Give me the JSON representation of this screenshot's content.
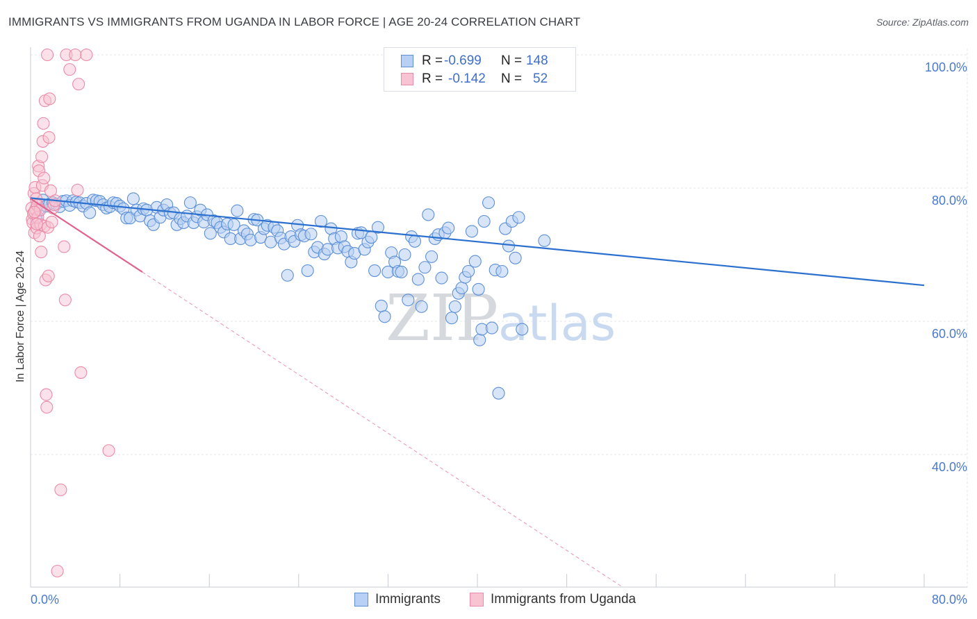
{
  "title": "IMMIGRANTS VS IMMIGRANTS FROM UGANDA IN LABOR FORCE | AGE 20-24 CORRELATION CHART",
  "source": "Source: ZipAtlas.com",
  "watermark": {
    "zip": "ZIP",
    "atlas": "atlas"
  },
  "legend_top": {
    "rows": [
      {
        "r_label": "R =",
        "r_value": "-0.699",
        "n_label": "N =",
        "n_value": "148"
      },
      {
        "r_label": "R =",
        "r_value": "-0.142",
        "n_label": "N =",
        "n_value": "52"
      }
    ]
  },
  "legend_bottom": {
    "items": [
      "Immigrants",
      "Immigrants from Uganda"
    ]
  },
  "colors": {
    "blue_fill": "#b8d0f3",
    "blue_stroke": "#5b8fd6",
    "blue_line": "#2b6fcf",
    "pink_fill": "#f8c4d3",
    "pink_stroke": "#ea8aa6",
    "pink_line": "#e0628c",
    "grid": "#e4e6ea",
    "axis_text": "#4a79c9"
  },
  "chart_data": {
    "type": "scatter",
    "title": "IMMIGRANTS VS IMMIGRANTS FROM UGANDA IN LABOR FORCE | AGE 20-24 CORRELATION CHART",
    "xlabel": "",
    "ylabel": "In Labor Force | Age 20-24",
    "x_tick_labels": [
      "0.0%",
      "80.0%"
    ],
    "y_tick_labels": [
      "40.0%",
      "60.0%",
      "80.0%",
      "100.0%"
    ],
    "xlim": [
      0,
      80
    ],
    "ylim": [
      20,
      102
    ],
    "grid": true,
    "legend": "top-center",
    "series": [
      {
        "name": "Immigrants",
        "r": -0.699,
        "n": 148,
        "trend": {
          "x": [
            0,
            80
          ],
          "y": [
            78.5,
            65.4
          ]
        },
        "points": [
          [
            0.5,
            75.5
          ],
          [
            0.8,
            76.9
          ],
          [
            1.1,
            78.2
          ],
          [
            1.4,
            77.3
          ],
          [
            1.7,
            77.6
          ],
          [
            2.0,
            77.8
          ],
          [
            2.3,
            77.6
          ],
          [
            2.6,
            77.2
          ],
          [
            2.9,
            78.0
          ],
          [
            3.2,
            78.1
          ],
          [
            3.5,
            77.4
          ],
          [
            3.8,
            78.1
          ],
          [
            4.1,
            77.9
          ],
          [
            4.4,
            77.8
          ],
          [
            4.7,
            77.3
          ],
          [
            5.0,
            77.7
          ],
          [
            5.3,
            76.3
          ],
          [
            5.6,
            78.2
          ],
          [
            5.9,
            78.1
          ],
          [
            6.2,
            78.0
          ],
          [
            6.5,
            77.5
          ],
          [
            6.8,
            77.0
          ],
          [
            7.1,
            77.2
          ],
          [
            7.4,
            77.8
          ],
          [
            7.7,
            77.7
          ],
          [
            8.0,
            77.3
          ],
          [
            8.3,
            76.9
          ],
          [
            8.6,
            75.5
          ],
          [
            8.9,
            75.5
          ],
          [
            9.2,
            78.4
          ],
          [
            9.5,
            76.7
          ],
          [
            9.8,
            75.8
          ],
          [
            10.1,
            76.9
          ],
          [
            10.4,
            76.7
          ],
          [
            10.7,
            75.1
          ],
          [
            11.0,
            74.5
          ],
          [
            11.3,
            77.1
          ],
          [
            11.6,
            75.6
          ],
          [
            11.9,
            76.7
          ],
          [
            12.2,
            77.5
          ],
          [
            12.5,
            76.2
          ],
          [
            12.8,
            76.3
          ],
          [
            13.1,
            74.5
          ],
          [
            13.4,
            75.4
          ],
          [
            13.7,
            74.8
          ],
          [
            14.0,
            75.8
          ],
          [
            14.3,
            77.8
          ],
          [
            14.6,
            74.8
          ],
          [
            14.9,
            75.7
          ],
          [
            15.2,
            76.7
          ],
          [
            15.5,
            74.9
          ],
          [
            15.8,
            76.0
          ],
          [
            16.1,
            73.2
          ],
          [
            16.4,
            75.1
          ],
          [
            16.7,
            74.8
          ],
          [
            17.0,
            74.1
          ],
          [
            17.3,
            73.4
          ],
          [
            17.6,
            74.6
          ],
          [
            17.9,
            72.4
          ],
          [
            18.2,
            74.5
          ],
          [
            18.5,
            76.6
          ],
          [
            18.8,
            72.4
          ],
          [
            19.1,
            73.6
          ],
          [
            19.4,
            73.1
          ],
          [
            19.7,
            72.2
          ],
          [
            20.0,
            75.3
          ],
          [
            20.3,
            75.2
          ],
          [
            20.6,
            72.6
          ],
          [
            20.9,
            73.9
          ],
          [
            21.2,
            74.4
          ],
          [
            21.5,
            71.9
          ],
          [
            21.8,
            74.1
          ],
          [
            22.1,
            73.6
          ],
          [
            22.4,
            72.5
          ],
          [
            22.7,
            71.6
          ],
          [
            23.0,
            66.9
          ],
          [
            23.3,
            72.7
          ],
          [
            23.6,
            72.0
          ],
          [
            23.9,
            74.4
          ],
          [
            24.2,
            73.0
          ],
          [
            24.5,
            72.8
          ],
          [
            24.8,
            67.6
          ],
          [
            25.1,
            73.1
          ],
          [
            25.4,
            70.4
          ],
          [
            25.7,
            71.1
          ],
          [
            26.0,
            75.0
          ],
          [
            26.3,
            70.1
          ],
          [
            26.6,
            70.8
          ],
          [
            26.9,
            73.9
          ],
          [
            27.2,
            72.4
          ],
          [
            27.5,
            71.0
          ],
          [
            27.8,
            72.7
          ],
          [
            28.1,
            71.2
          ],
          [
            28.4,
            70.5
          ],
          [
            28.7,
            68.9
          ],
          [
            29.0,
            70.2
          ],
          [
            29.3,
            73.2
          ],
          [
            29.6,
            73.3
          ],
          [
            29.9,
            70.8
          ],
          [
            30.2,
            71.9
          ],
          [
            30.5,
            72.6
          ],
          [
            30.8,
            67.6
          ],
          [
            31.1,
            74.1
          ],
          [
            31.4,
            62.3
          ],
          [
            31.7,
            60.7
          ],
          [
            32.0,
            67.4
          ],
          [
            32.3,
            70.3
          ],
          [
            32.6,
            68.9
          ],
          [
            32.9,
            67.5
          ],
          [
            33.2,
            67.4
          ],
          [
            33.5,
            70.0
          ],
          [
            33.8,
            63.2
          ],
          [
            34.1,
            72.7
          ],
          [
            34.4,
            72.0
          ],
          [
            34.7,
            66.3
          ],
          [
            35.0,
            62.2
          ],
          [
            35.3,
            68.1
          ],
          [
            35.6,
            76.0
          ],
          [
            35.9,
            69.7
          ],
          [
            36.2,
            72.4
          ],
          [
            36.5,
            73.0
          ],
          [
            36.8,
            66.5
          ],
          [
            37.1,
            73.3
          ],
          [
            37.4,
            74.0
          ],
          [
            37.7,
            60.5
          ],
          [
            38.0,
            62.2
          ],
          [
            38.3,
            64.2
          ],
          [
            38.6,
            65.0
          ],
          [
            38.9,
            66.6
          ],
          [
            39.2,
            67.5
          ],
          [
            39.5,
            73.5
          ],
          [
            39.8,
            69.0
          ],
          [
            40.1,
            64.8
          ],
          [
            40.2,
            57.2
          ],
          [
            40.4,
            58.8
          ],
          [
            40.6,
            75.0
          ],
          [
            41.0,
            77.8
          ],
          [
            41.3,
            59.0
          ],
          [
            41.6,
            67.7
          ],
          [
            41.9,
            49.2
          ],
          [
            42.2,
            67.5
          ],
          [
            42.5,
            73.9
          ],
          [
            42.8,
            71.3
          ],
          [
            43.1,
            75.0
          ],
          [
            43.4,
            69.5
          ],
          [
            43.7,
            75.6
          ],
          [
            44.0,
            58.8
          ],
          [
            46.0,
            72.1
          ]
        ]
      },
      {
        "name": "Immigrants from Uganda",
        "r": -0.142,
        "n": 52,
        "trend": {
          "x": [
            0,
            10
          ],
          "y": [
            78.4,
            67.4
          ]
        },
        "points": [
          [
            0.1,
            77.0
          ],
          [
            0.15,
            75.3
          ],
          [
            0.2,
            74.8
          ],
          [
            0.25,
            76.2
          ],
          [
            0.3,
            79.2
          ],
          [
            0.35,
            73.3
          ],
          [
            0.4,
            80.1
          ],
          [
            0.45,
            76.8
          ],
          [
            0.5,
            78.4
          ],
          [
            0.55,
            74.0
          ],
          [
            0.6,
            77.4
          ],
          [
            0.65,
            75.6
          ],
          [
            0.7,
            83.3
          ],
          [
            0.75,
            82.6
          ],
          [
            0.8,
            72.8
          ],
          [
            0.85,
            76.7
          ],
          [
            0.9,
            74.5
          ],
          [
            0.95,
            70.4
          ],
          [
            1.0,
            84.7
          ],
          [
            1.05,
            80.4
          ],
          [
            1.1,
            87.0
          ],
          [
            1.15,
            89.7
          ],
          [
            1.2,
            81.5
          ],
          [
            1.25,
            74.3
          ],
          [
            1.3,
            93.1
          ],
          [
            1.35,
            66.2
          ],
          [
            1.4,
            49.0
          ],
          [
            1.45,
            47.1
          ],
          [
            1.5,
            100.0
          ],
          [
            1.55,
            74.1
          ],
          [
            1.6,
            66.8
          ],
          [
            1.65,
            87.6
          ],
          [
            1.7,
            93.4
          ],
          [
            1.8,
            79.6
          ],
          [
            1.9,
            74.9
          ],
          [
            2.0,
            77.0
          ],
          [
            2.1,
            77.5
          ],
          [
            2.2,
            78.1
          ],
          [
            2.4,
            22.5
          ],
          [
            2.7,
            34.7
          ],
          [
            3.0,
            71.2
          ],
          [
            3.1,
            63.2
          ],
          [
            3.2,
            100.0
          ],
          [
            3.5,
            97.8
          ],
          [
            4.0,
            100.0
          ],
          [
            4.2,
            79.7
          ],
          [
            4.3,
            95.6
          ],
          [
            4.5,
            52.3
          ],
          [
            5.0,
            100.0
          ],
          [
            7.0,
            40.6
          ],
          [
            0.35,
            76.4
          ],
          [
            0.55,
            74.6
          ]
        ]
      }
    ]
  }
}
